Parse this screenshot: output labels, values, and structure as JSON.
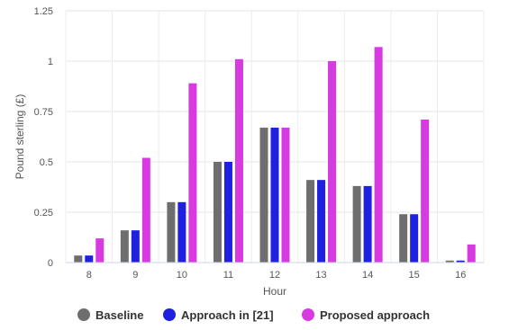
{
  "chart_data": {
    "type": "bar",
    "xlabel": "Hour",
    "ylabel": "Pound sterling (£)",
    "categories": [
      "8",
      "9",
      "10",
      "11",
      "12",
      "13",
      "14",
      "15",
      "16"
    ],
    "ylim": [
      0,
      1.25
    ],
    "yticks": [
      "0",
      "0.25",
      "0.5",
      "0.75",
      "1",
      "1.25"
    ],
    "grid": true,
    "legend_position": "bottom",
    "series": [
      {
        "name": "Baseline",
        "color": "#6e6e6e",
        "values": [
          0.035,
          0.16,
          0.3,
          0.5,
          0.67,
          0.41,
          0.38,
          0.24,
          0.01
        ]
      },
      {
        "name": "Approach in [21]",
        "color": "#2020e0",
        "values": [
          0.035,
          0.16,
          0.3,
          0.5,
          0.67,
          0.41,
          0.38,
          0.24,
          0.01
        ]
      },
      {
        "name": "Proposed approach",
        "color": "#d63ae0",
        "values": [
          0.12,
          0.52,
          0.89,
          1.01,
          0.67,
          1.0,
          1.07,
          0.71,
          0.09
        ]
      }
    ]
  }
}
